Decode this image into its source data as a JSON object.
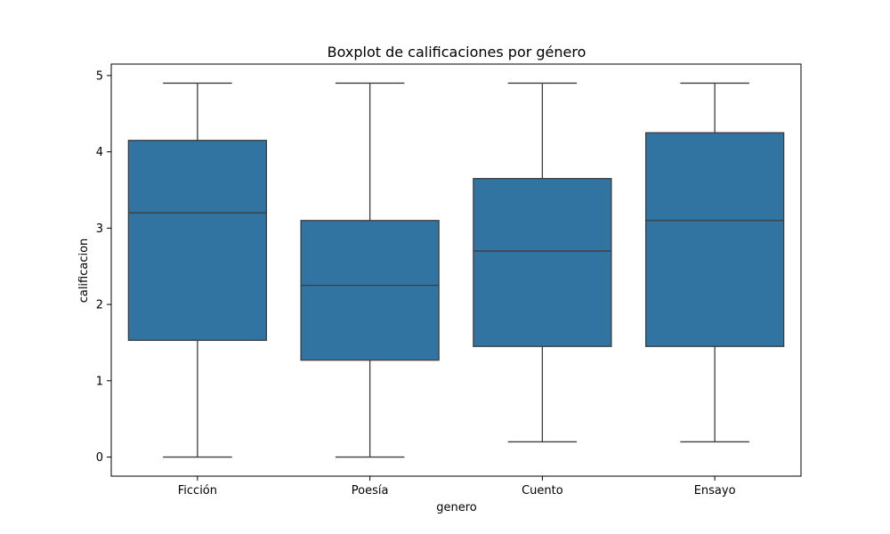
{
  "chart_data": {
    "type": "box",
    "title": "Boxplot de calificaciones por género",
    "xlabel": "genero",
    "ylabel": "calificacion",
    "ylim": [
      -0.25,
      5.15
    ],
    "yticks": [
      0,
      1,
      2,
      3,
      4,
      5
    ],
    "grid": false,
    "legend": "none",
    "box_color": "#3274a1",
    "line_color": "#3d3d3d",
    "categories": [
      "Ficción",
      "Poesía",
      "Cuento",
      "Ensayo"
    ],
    "boxes": [
      {
        "category": "Ficción",
        "whisker_low": 0.0,
        "q1": 1.53,
        "median": 3.2,
        "q3": 4.15,
        "whisker_high": 4.9
      },
      {
        "category": "Poesía",
        "whisker_low": 0.0,
        "q1": 1.27,
        "median": 2.25,
        "q3": 3.1,
        "whisker_high": 4.9
      },
      {
        "category": "Cuento",
        "whisker_low": 0.2,
        "q1": 1.45,
        "median": 2.7,
        "q3": 3.65,
        "whisker_high": 4.9
      },
      {
        "category": "Ensayo",
        "whisker_low": 0.2,
        "q1": 1.45,
        "median": 3.1,
        "q3": 4.25,
        "whisker_high": 4.9
      }
    ]
  }
}
